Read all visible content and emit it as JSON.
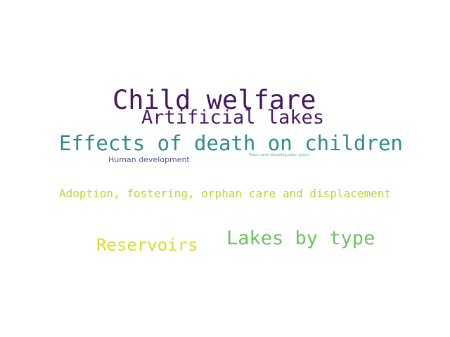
{
  "colors": {
    "background": "#ffffff"
  },
  "words": [
    {
      "id": "w-child-welfare",
      "text": "Child welfare",
      "color": "#461660"
    },
    {
      "id": "w-artificial-lakes",
      "text": "Artificial lakes",
      "color": "#4a1a64"
    },
    {
      "id": "w-effects-death",
      "text": "Effects of death on children",
      "color": "#2e8c8c"
    },
    {
      "id": "w-human-dev",
      "text": "Human development",
      "color": "#4b5a96"
    },
    {
      "id": "w-place-name",
      "text": "Place name disambiguation pages",
      "color": "#4fbf8a"
    },
    {
      "id": "w-adoption",
      "text": "Adoption, fostering, orphan care and displacement",
      "color": "#b7d633"
    },
    {
      "id": "w-lakes-by-type",
      "text": "Lakes by type",
      "color": "#6cc160"
    },
    {
      "id": "w-reservoirs",
      "text": "Reservoirs",
      "color": "#d7de26"
    }
  ]
}
